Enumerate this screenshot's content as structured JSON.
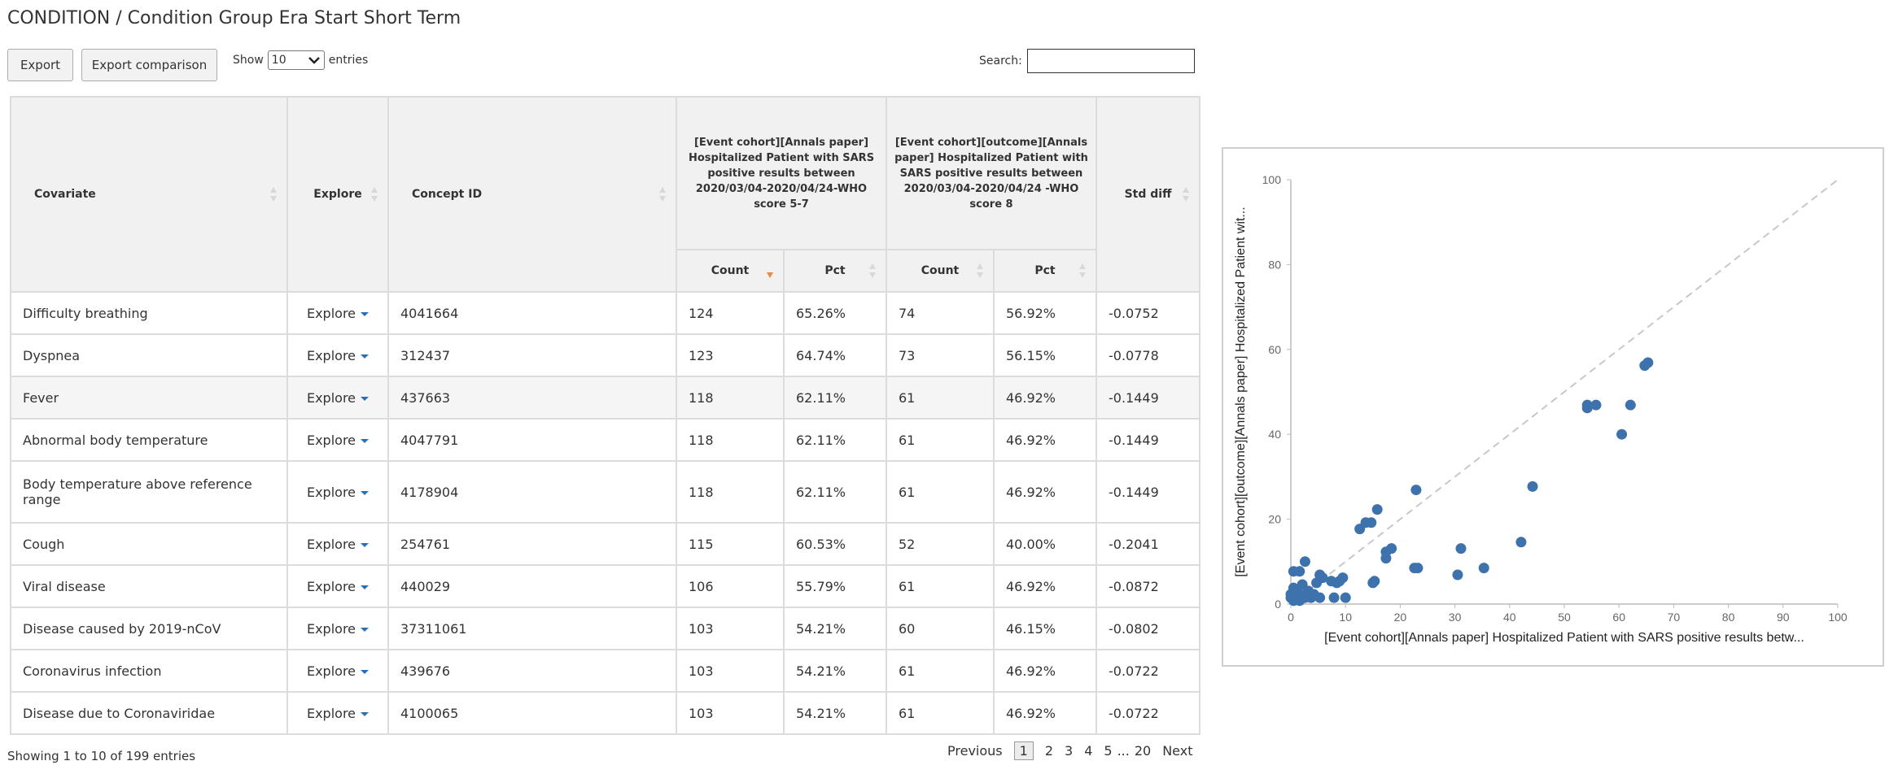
{
  "page": {
    "title": "CONDITION / Condition Group Era Start Short Term"
  },
  "toolbar": {
    "export_label": "Export",
    "export_comparison_label": "Export comparison",
    "show_label": "Show",
    "entries_label": "entries",
    "page_length": "10",
    "search_label": "Search:",
    "search_value": ""
  },
  "table": {
    "headers": {
      "covariate": "Covariate",
      "explore": "Explore",
      "concept_id": "Concept ID",
      "cohort1": "[Event cohort][Annals paper] Hospitalized Patient with SARS positive results between 2020/03/04-2020/04/24-WHO score 5-7",
      "cohort2": "[Event cohort][outcome][Annals paper] Hospitalized Patient with SARS positive results between 2020/03/04-2020/04/24 -WHO score 8",
      "std_diff": "Std diff",
      "count1": "Count",
      "pct1": "Pct",
      "count2": "Count",
      "pct2": "Pct"
    },
    "explore_label": "Explore",
    "rows": [
      {
        "covariate": "Difficulty breathing",
        "concept_id": "4041664",
        "count1": "124",
        "pct1": "65.26%",
        "count2": "74",
        "pct2": "56.92%",
        "std_diff": "-0.0752"
      },
      {
        "covariate": "Dyspnea",
        "concept_id": "312437",
        "count1": "123",
        "pct1": "64.74%",
        "count2": "73",
        "pct2": "56.15%",
        "std_diff": "-0.0778"
      },
      {
        "covariate": "Fever",
        "concept_id": "437663",
        "count1": "118",
        "pct1": "62.11%",
        "count2": "61",
        "pct2": "46.92%",
        "std_diff": "-0.1449"
      },
      {
        "covariate": "Abnormal body temperature",
        "concept_id": "4047791",
        "count1": "118",
        "pct1": "62.11%",
        "count2": "61",
        "pct2": "46.92%",
        "std_diff": "-0.1449"
      },
      {
        "covariate": "Body temperature above reference range",
        "concept_id": "4178904",
        "count1": "118",
        "pct1": "62.11%",
        "count2": "61",
        "pct2": "46.92%",
        "std_diff": "-0.1449"
      },
      {
        "covariate": "Cough",
        "concept_id": "254761",
        "count1": "115",
        "pct1": "60.53%",
        "count2": "52",
        "pct2": "40.00%",
        "std_diff": "-0.2041"
      },
      {
        "covariate": "Viral disease",
        "concept_id": "440029",
        "count1": "106",
        "pct1": "55.79%",
        "count2": "61",
        "pct2": "46.92%",
        "std_diff": "-0.0872"
      },
      {
        "covariate": "Disease caused by 2019-nCoV",
        "concept_id": "37311061",
        "count1": "103",
        "pct1": "54.21%",
        "count2": "60",
        "pct2": "46.15%",
        "std_diff": "-0.0802"
      },
      {
        "covariate": "Coronavirus infection",
        "concept_id": "439676",
        "count1": "103",
        "pct1": "54.21%",
        "count2": "61",
        "pct2": "46.92%",
        "std_diff": "-0.0722"
      },
      {
        "covariate": "Disease due to Coronaviridae",
        "concept_id": "4100065",
        "count1": "103",
        "pct1": "54.21%",
        "count2": "61",
        "pct2": "46.92%",
        "std_diff": "-0.0722"
      }
    ]
  },
  "footer": {
    "info": "Showing 1 to 10 of 199 entries",
    "pager": {
      "previous": "Previous",
      "current": "1",
      "pages": [
        "2",
        "3",
        "4",
        "5"
      ],
      "ellipsis": "...",
      "last": "20",
      "next": "Next"
    }
  },
  "colors": {
    "point": "#3d72ad",
    "link": "#2a6ebb",
    "sort_active": "#f0883e",
    "diagonal": "#c8c8c8"
  },
  "chart_data": {
    "type": "scatter",
    "xlabel": "[Event cohort][Annals paper] Hospitalized Patient with SARS positive results betw...",
    "ylabel": "[Event cohort][outcome][Annals paper] Hospitalized Patient wit...",
    "xlim": [
      0,
      100
    ],
    "ylim": [
      0,
      100
    ],
    "xticks": [
      "0",
      "10",
      "20",
      "30",
      "40",
      "50",
      "60",
      "70",
      "80",
      "90",
      "100"
    ],
    "yticks": [
      "0",
      "20",
      "40",
      "60",
      "80",
      "100"
    ],
    "diagonal": true,
    "points": [
      [
        65.3,
        56.9
      ],
      [
        64.7,
        56.2
      ],
      [
        62.1,
        46.9
      ],
      [
        60.5,
        40.0
      ],
      [
        55.8,
        46.9
      ],
      [
        54.2,
        46.2
      ],
      [
        54.2,
        46.9
      ],
      [
        44.2,
        27.7
      ],
      [
        42.1,
        14.6
      ],
      [
        35.3,
        8.5
      ],
      [
        31.1,
        13.1
      ],
      [
        30.5,
        6.9
      ],
      [
        23.2,
        8.5
      ],
      [
        22.6,
        8.5
      ],
      [
        22.9,
        26.9
      ],
      [
        18.4,
        13.1
      ],
      [
        17.4,
        12.3
      ],
      [
        17.4,
        10.8
      ],
      [
        15.8,
        22.3
      ],
      [
        15.3,
        5.4
      ],
      [
        15.0,
        5.0
      ],
      [
        14.7,
        19.2
      ],
      [
        13.7,
        19.2
      ],
      [
        12.6,
        17.7
      ],
      [
        10.0,
        1.5
      ],
      [
        9.5,
        6.2
      ],
      [
        8.9,
        5.4
      ],
      [
        8.4,
        5.0
      ],
      [
        7.9,
        1.5
      ],
      [
        7.4,
        5.4
      ],
      [
        5.8,
        6.2
      ],
      [
        5.3,
        6.9
      ],
      [
        5.3,
        1.5
      ],
      [
        4.7,
        5.0
      ],
      [
        4.2,
        2.3
      ],
      [
        3.7,
        1.5
      ],
      [
        3.2,
        3.1
      ],
      [
        2.6,
        10.0
      ],
      [
        2.6,
        1.5
      ],
      [
        2.1,
        4.6
      ],
      [
        1.6,
        7.7
      ],
      [
        1.6,
        2.3
      ],
      [
        1.1,
        3.1
      ],
      [
        1.1,
        1.5
      ],
      [
        0.5,
        7.7
      ],
      [
        0.5,
        3.8
      ],
      [
        0.5,
        2.3
      ],
      [
        0.5,
        0.8
      ],
      [
        0.0,
        2.3
      ],
      [
        0.0,
        1.5
      ],
      [
        1.6,
        0.8
      ]
    ]
  }
}
